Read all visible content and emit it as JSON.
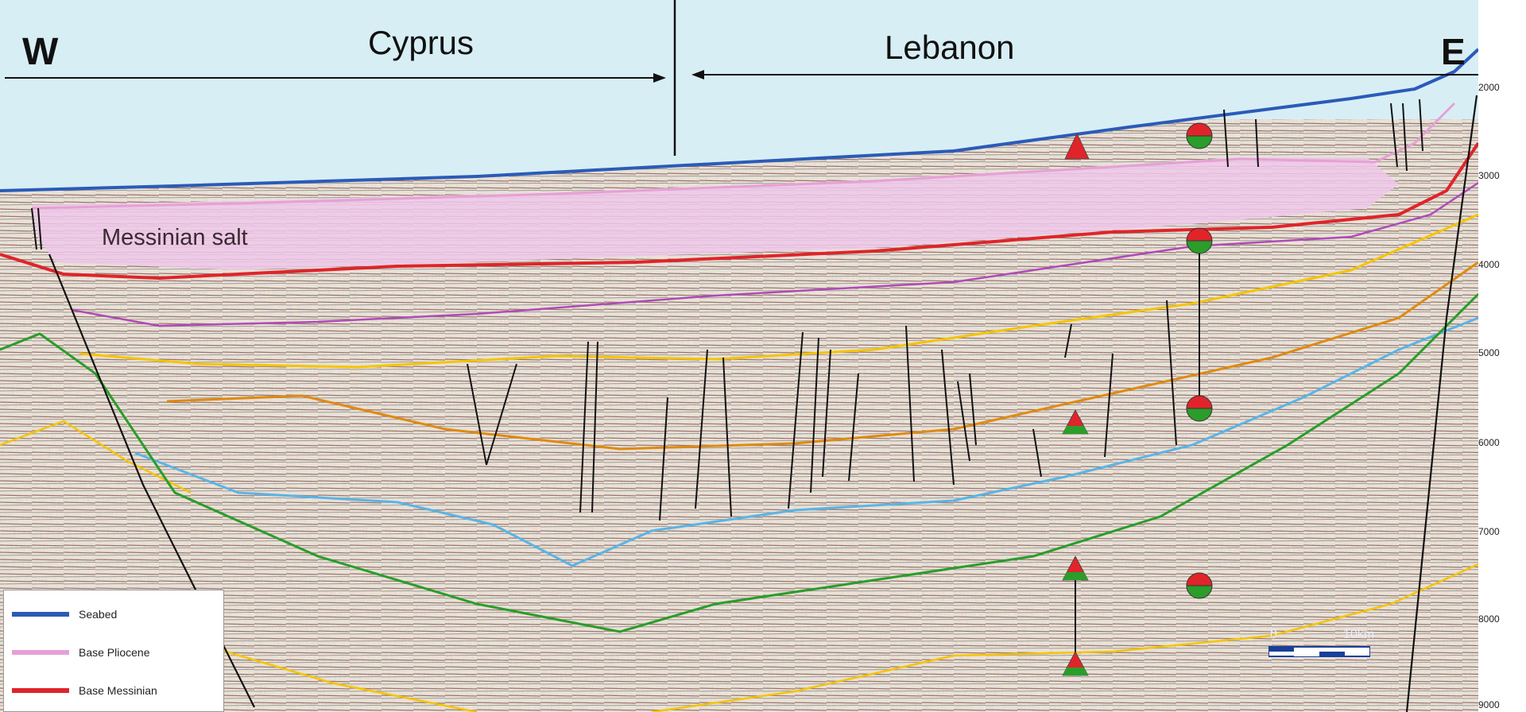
{
  "header": {
    "west_label": "W",
    "east_label": "E",
    "left_region": "Cyprus",
    "right_region": "Lebanon"
  },
  "annotation": {
    "salt_label": "Messinian salt"
  },
  "depth_axis": {
    "ticks": [
      "2000",
      "3000",
      "4000",
      "5000",
      "6000",
      "7000",
      "8000",
      "9000"
    ]
  },
  "legend": {
    "items": [
      {
        "label": "Seabed",
        "color": "#2b5bb8"
      },
      {
        "label": "Base Pliocene",
        "color": "#e6a0d6"
      },
      {
        "label": "Base Messinian",
        "color": "#e0242a"
      }
    ]
  },
  "scale_bar": {
    "start_label": "0",
    "end_label": "10km"
  },
  "colors": {
    "sea": "#d8eef5",
    "salt": "#efc8ea",
    "seabed": "#2b5bb8",
    "base_pliocene": "#e6a0d6",
    "base_messinian": "#e0242a",
    "purple_horizon": "#b04ab8",
    "yellow_horizon": "#f5c400",
    "orange_horizon": "#e08a10",
    "cyan_horizon": "#5ab4e6",
    "green_horizon": "#2a9d2a",
    "symbol_red": "#e0242a",
    "symbol_green": "#2a9d2a"
  }
}
